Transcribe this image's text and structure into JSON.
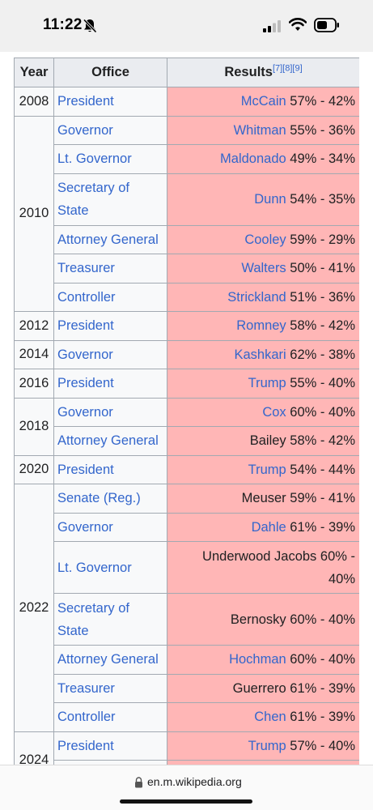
{
  "status_bar": {
    "time": "11:22",
    "icons": [
      "bell-slash-icon",
      "cellular-signal-icon",
      "wifi-icon",
      "battery-icon"
    ]
  },
  "table": {
    "headers": {
      "year": "Year",
      "office": "Office",
      "results": "Results",
      "refs": "[7][8][9]"
    },
    "colors": {
      "republican_fill": "#ffb6b6",
      "header_bg": "#eaecf0",
      "link": "#3366cc",
      "border": "#a2a9b1"
    },
    "years": {
      "y2008": "2008",
      "y2010": "2010",
      "y2012": "2012",
      "y2014": "2014",
      "y2016": "2016",
      "y2018": "2018",
      "y2020": "2020",
      "y2022": "2022",
      "y2024": "2024"
    },
    "rows": [
      {
        "office": "President",
        "candidate": "McCain",
        "result": "57% - 42%"
      },
      {
        "office": "Governor",
        "candidate": "Whitman",
        "result": "55% - 36%"
      },
      {
        "office": "Lt. Governor",
        "candidate": "Maldonado",
        "result": "49% - 34%"
      },
      {
        "office": "Secretary of State",
        "candidate": "Dunn",
        "result": "54% - 35%"
      },
      {
        "office": "Attorney General",
        "candidate": "Cooley",
        "result": "59% - 29%"
      },
      {
        "office": "Treasurer",
        "candidate": "Walters",
        "result": "50% - 41%"
      },
      {
        "office": "Controller",
        "candidate": "Strickland",
        "result": "51% - 36%"
      },
      {
        "office": "President",
        "candidate": "Romney",
        "result": "58% - 42%"
      },
      {
        "office": "Governor",
        "candidate": "Kashkari",
        "result": "62% - 38%"
      },
      {
        "office": "President",
        "candidate": "Trump",
        "result": "55% - 40%"
      },
      {
        "office": "Governor",
        "candidate": "Cox",
        "result": "60% - 40%"
      },
      {
        "office": "Attorney General",
        "candidate": "Bailey",
        "result": "58% - 42%"
      },
      {
        "office": "President",
        "candidate": "Trump",
        "result": "54% - 44%"
      },
      {
        "office": "Senate (Reg.)",
        "candidate": "Meuser",
        "result": "59% - 41%"
      },
      {
        "office": "Governor",
        "candidate": "Dahle",
        "result": "61% - 39%"
      },
      {
        "office": "Lt. Governor",
        "candidate": "Underwood Jacobs",
        "result": "60% - 40%"
      },
      {
        "office": "Secretary of State",
        "candidate": "Bernosky",
        "result": "60% - 40%"
      },
      {
        "office": "Attorney General",
        "candidate": "Hochman",
        "result": "60% - 40%"
      },
      {
        "office": "Treasurer",
        "candidate": "Guerrero",
        "result": "61% - 39%"
      },
      {
        "office": "Controller",
        "candidate": "Chen",
        "result": "61% - 39%"
      },
      {
        "office": "President",
        "candidate": "Trump",
        "result": "57% - 40%"
      }
    ]
  },
  "browser": {
    "url": "en.m.wikipedia.org"
  }
}
